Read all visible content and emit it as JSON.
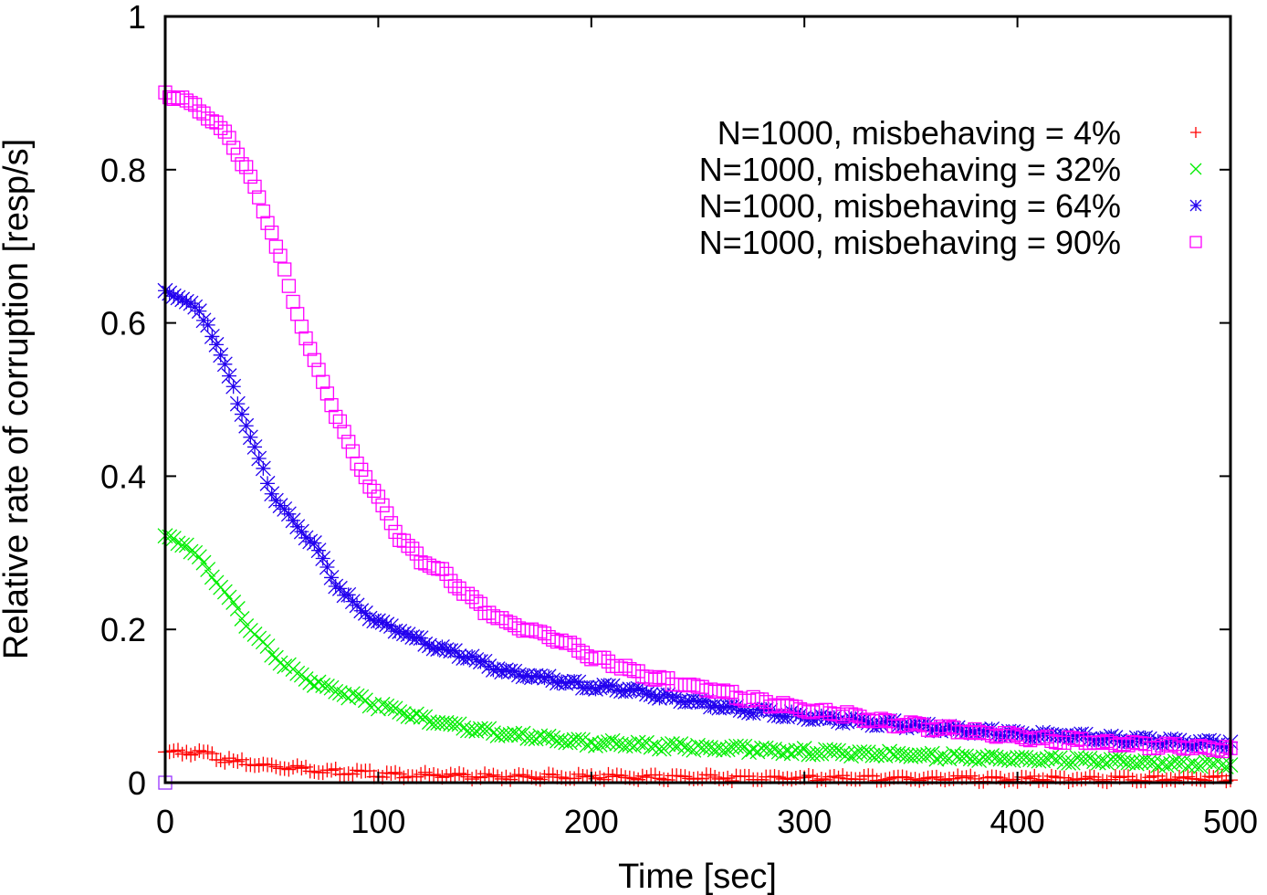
{
  "chart_data": {
    "type": "scatter",
    "title": "",
    "xlabel": "Time [sec]",
    "ylabel": "Relative rate of corruption [resp/s]",
    "xlim": [
      0,
      500
    ],
    "ylim": [
      0,
      1
    ],
    "xticks": [
      0,
      100,
      200,
      300,
      400,
      500
    ],
    "xtick_labels": [
      "0",
      "100",
      "200",
      "300",
      "400",
      "500"
    ],
    "yticks": [
      0,
      0.2,
      0.4,
      0.6,
      0.8,
      1
    ],
    "ytick_labels": [
      "0",
      "0.2",
      "0.4",
      "0.6",
      "0.8",
      "1"
    ],
    "grid": false,
    "legend_position": "top-right",
    "series": [
      {
        "name": "N=1000, misbehaving = 4%",
        "marker": "plus",
        "color": "#ff0000",
        "x": [
          0,
          10,
          20,
          30,
          50,
          70,
          100,
          150,
          200,
          300,
          400,
          500
        ],
        "y": [
          0.04,
          0.04,
          0.037,
          0.028,
          0.022,
          0.017,
          0.011,
          0.008,
          0.007,
          0.006,
          0.005,
          0.005
        ]
      },
      {
        "name": "N=1000, misbehaving = 32%",
        "marker": "cross",
        "color": "#00ee00",
        "x": [
          0,
          10,
          20,
          30,
          40,
          50,
          60,
          70,
          80,
          100,
          120,
          140,
          160,
          180,
          200,
          240,
          280,
          320,
          360,
          400,
          440,
          480,
          500
        ],
        "y": [
          0.32,
          0.31,
          0.28,
          0.24,
          0.2,
          0.17,
          0.145,
          0.13,
          0.12,
          0.1,
          0.085,
          0.072,
          0.063,
          0.057,
          0.052,
          0.047,
          0.043,
          0.039,
          0.035,
          0.031,
          0.028,
          0.025,
          0.024
        ]
      },
      {
        "name": "N=1000, misbehaving = 64%",
        "marker": "star",
        "color": "#2200ee",
        "x": [
          0,
          10,
          20,
          30,
          40,
          50,
          60,
          70,
          80,
          90,
          100,
          120,
          140,
          160,
          180,
          200,
          220,
          240,
          260,
          280,
          300,
          320,
          340,
          360,
          380,
          400,
          420,
          440,
          460,
          480,
          500
        ],
        "y": [
          0.64,
          0.63,
          0.6,
          0.53,
          0.45,
          0.38,
          0.34,
          0.31,
          0.26,
          0.23,
          0.21,
          0.185,
          0.165,
          0.145,
          0.135,
          0.125,
          0.12,
          0.11,
          0.1,
          0.093,
          0.087,
          0.081,
          0.077,
          0.072,
          0.068,
          0.064,
          0.061,
          0.058,
          0.055,
          0.052,
          0.05
        ]
      },
      {
        "name": "N=1000, misbehaving = 90%",
        "marker": "square",
        "color": "#ff00ff",
        "x": [
          0,
          10,
          20,
          30,
          40,
          50,
          60,
          70,
          80,
          90,
          100,
          110,
          120,
          130,
          140,
          150,
          160,
          170,
          180,
          190,
          200,
          220,
          240,
          260,
          280,
          300,
          320,
          340,
          360,
          380,
          400,
          420,
          440,
          460,
          480,
          500
        ],
        "y": [
          0.9,
          0.89,
          0.87,
          0.84,
          0.79,
          0.72,
          0.63,
          0.55,
          0.48,
          0.42,
          0.37,
          0.32,
          0.29,
          0.275,
          0.25,
          0.225,
          0.21,
          0.2,
          0.19,
          0.18,
          0.165,
          0.145,
          0.13,
          0.12,
          0.105,
          0.095,
          0.088,
          0.078,
          0.072,
          0.066,
          0.06,
          0.056,
          0.052,
          0.049,
          0.046,
          0.044
        ]
      }
    ]
  }
}
